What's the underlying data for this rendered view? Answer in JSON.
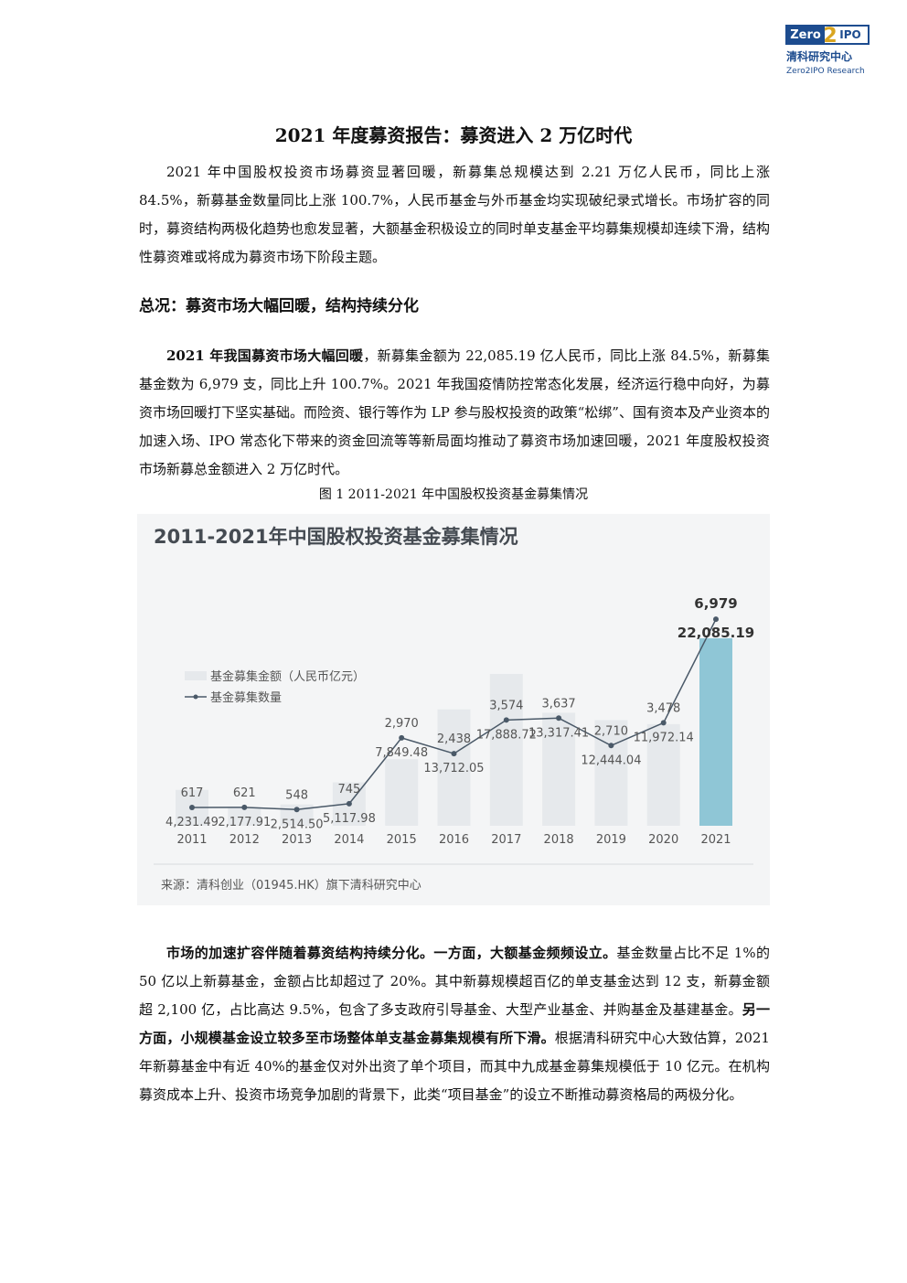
{
  "header": {
    "logo_left": "Zero",
    "logo_mid": "2",
    "logo_right": "IPO",
    "logo_name": "清科研究中心",
    "logo_en": "Zero2IPO Research"
  },
  "title": "2021 年度募资报告：募资进入 2 万亿时代",
  "paragraphs": [
    {
      "runs": [
        {
          "text": "2021 年中国股权投资市场募资显著回暖，新募集总规模达到 2.21 万亿人民币，同比上涨 84.5%，新募基金数量同比上涨 100.7%，人民币基金与外币基金均实现破纪录式增长。市场扩容的同时，募资结构两极化趋势也愈发显著，大额基金积极设立的同时单支基金平均募集规模却连续下滑，结构性募资难或将成为募资市场下阶段主题。"
        }
      ]
    },
    {
      "heading": "总况：募资市场大幅回暖，结构持续分化"
    },
    {
      "runs": [
        {
          "text": "2021 年我国募资市场大幅回暖",
          "bold": true
        },
        {
          "text": "，新募集金额为 22,085.19 亿人民币，同比上涨 84.5%，新募集基金数为 6,979 支，同比上升 100.7%。2021 年我国疫情防控常态化发展，经济运行稳中向好，为募资市场回暖打下坚实基础。而险资、银行等作为 LP 参与股权投资的政策“松绑”、国有资本及产业资本的加速入场、IPO 常态化下带来的资金回流等等新局面均推动了募资市场加速回暖，2021 年度股权投资市场新募总金额进入 2 万亿时代。"
        }
      ]
    },
    {
      "caption": "图 1 2011-2021 年中国股权投资基金募集情况"
    },
    {
      "runs": [
        {
          "text": "市场的加速扩容伴随着募资结构持续分化。一方面，大额基金频频设立。",
          "bold": true
        },
        {
          "text": "基金数量占比不足 1%的 50 亿以上新募基金，金额占比却超过了 20%。其中新募规模超百亿的单支基金达到 12 支，新募金额超 2,100 亿，占比高达 9.5%，包含了多支政府引导基金、大型产业基金、并购基金及基建基金。"
        },
        {
          "text": "另一方面，小规模基金设立较多至市场整体单支基金募集规模有所下滑。",
          "bold": true
        },
        {
          "text": "根据清科研究中心大致估算，2021 年新募基金中有近 40%的基金仅对外出资了单个项目，而其中九成基金募集规模低于 10 亿元。在机构募资成本上升、投资市场竞争加剧的背景下，此类“项目基金”的设立不断推动募资格局的两极分化。"
        }
      ]
    }
  ],
  "chart_data": {
    "type": "bar-line",
    "title": "2011-2021年中国股权投资基金募集情况",
    "source": "来源：清科创业（01945.HK）旗下清科研究中心",
    "categories": [
      "2011",
      "2012",
      "2013",
      "2014",
      "2015",
      "2016",
      "2017",
      "2018",
      "2019",
      "2020",
      "2021"
    ],
    "series": [
      {
        "name": "基金募集金额（人民币亿元）",
        "color": "#e6e9ec",
        "point_colors": [
          "#e6e9ec",
          "#e6e9ec",
          "#e6e9ec",
          "#e6e9ec",
          "#e6e9ec",
          "#e6e9ec",
          "#e6e9ec",
          "#e6e9ec",
          "#e6e9ec",
          "#e6e9ec",
          "#8fc6d6"
        ],
        "values": [
          4231.49,
          2177.91,
          2514.5,
          5117.98,
          7849.48,
          13712.05,
          17888.72,
          13317.41,
          12444.04,
          11972.14,
          22085.19
        ],
        "value_labels": [
          "4,231.49",
          "2,177.91",
          "2,514.50",
          "5,117.98",
          "7,849.48",
          "13,712.05",
          "17,888.72",
          "13,317.41",
          "12,444.04",
          "11,972.14",
          "22,085.19"
        ]
      },
      {
        "name": "基金募集数量",
        "color": "#4a5968",
        "axis": "y2",
        "values": [
          617,
          621,
          548,
          745,
          2970,
          2438,
          3574,
          3637,
          2710,
          3478,
          6979
        ],
        "value_labels": [
          "617",
          "621",
          "548",
          "745",
          "2,970",
          "2,438",
          "3,574",
          "3,637",
          "2,710",
          "3,478",
          "6,979"
        ]
      }
    ],
    "ylim": [
      0,
      26500
    ],
    "y2lim": [
      0,
      7600
    ]
  }
}
